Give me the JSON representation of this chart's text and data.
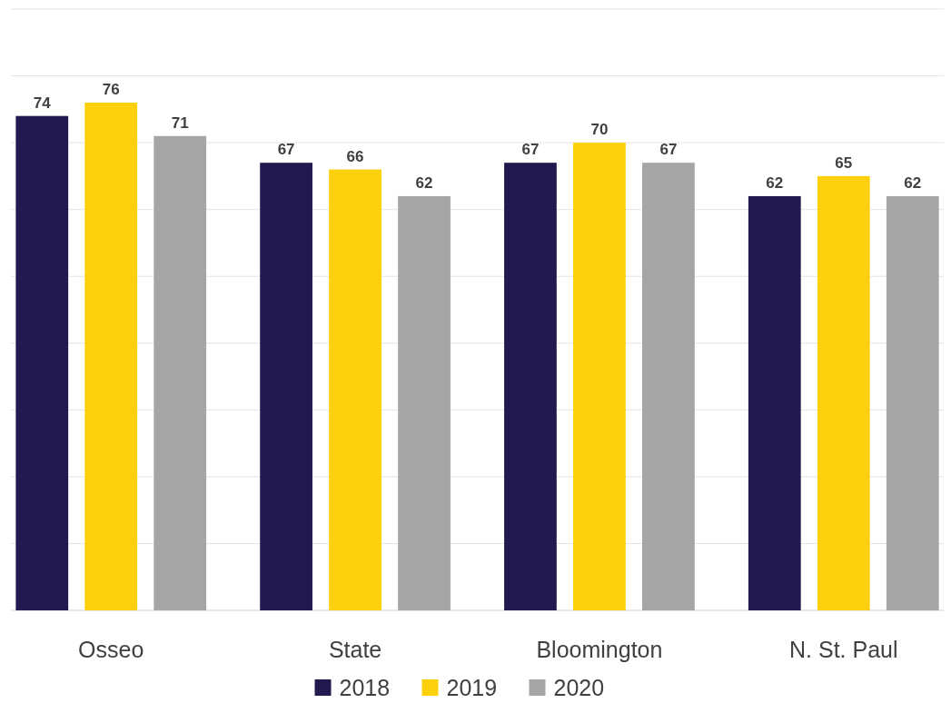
{
  "chart_data": {
    "type": "bar",
    "categories": [
      "Osseo",
      "State",
      "Bloomington",
      "N. St. Paul"
    ],
    "series": [
      {
        "name": "2018",
        "color": "#211a4e",
        "values": [
          74,
          67,
          67,
          62
        ]
      },
      {
        "name": "2019",
        "color": "#fdd00c",
        "values": [
          76,
          66,
          70,
          65
        ]
      },
      {
        "name": "2020",
        "color": "#a5a5a5",
        "values": [
          71,
          62,
          67,
          62
        ]
      }
    ],
    "ylim": [
      0,
      90
    ],
    "yticks": [
      {
        "value": 0,
        "label": null
      },
      {
        "value": 10,
        "label": null
      },
      {
        "value": 20,
        "label": null
      },
      {
        "value": 30,
        "label": null
      },
      {
        "value": 40,
        "label": null
      },
      {
        "value": 50,
        "label": null
      },
      {
        "value": 60,
        "label": null
      },
      {
        "value": 70,
        "label": null
      },
      {
        "value": 80,
        "label": null
      },
      {
        "value": 90,
        "label": null
      }
    ],
    "grid": "y",
    "tick_labels": "x",
    "data_labels": true,
    "legend": "bottom"
  }
}
